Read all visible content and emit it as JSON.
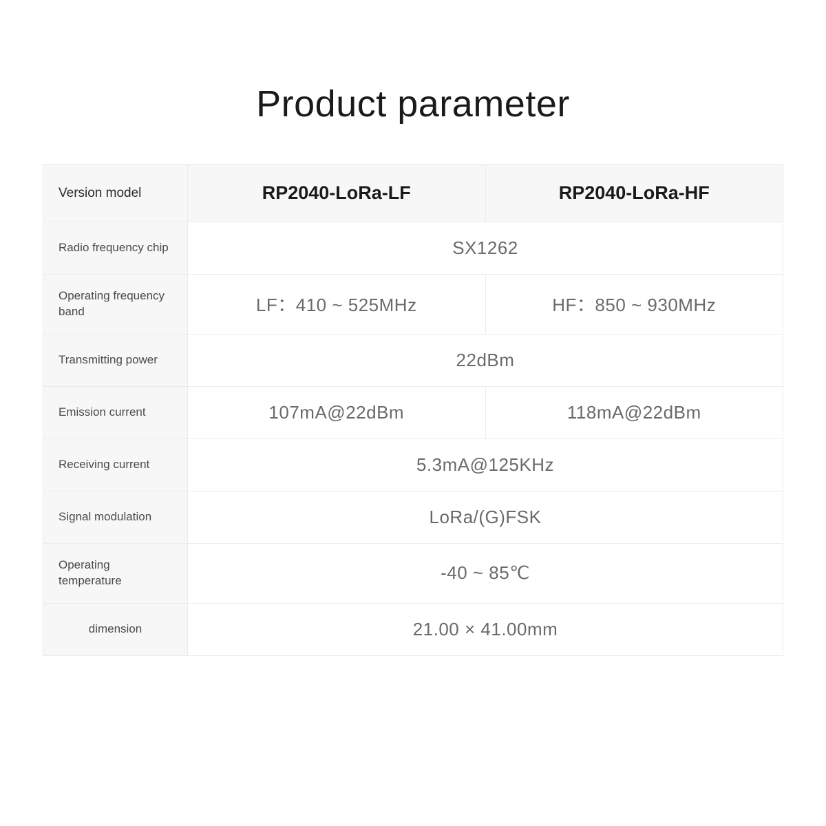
{
  "title": "Product parameter",
  "table": {
    "type": "table",
    "background_color": "#ffffff",
    "header_bg": "#f7f7f7",
    "border_color": "#ececec",
    "label_color": "#4a4a4a",
    "value_color": "#6a6a6a",
    "header_value_color": "#1a1a1a",
    "label_fontsize": 17,
    "value_fontsize": 26,
    "header_value_fontsize": 27,
    "header": {
      "label": "Version model",
      "col_lf": "RP2040-LoRa-LF",
      "col_hf": "RP2040-LoRa-HF"
    },
    "rows": [
      {
        "label": "Radio frequency chip",
        "span": true,
        "value": "SX1262"
      },
      {
        "label": "Operating frequency band",
        "span": false,
        "lf": "LF：410 ~ 525MHz",
        "hf": "HF：850 ~ 930MHz"
      },
      {
        "label": "Transmitting power",
        "span": true,
        "value": "22dBm"
      },
      {
        "label": "Emission current",
        "span": false,
        "lf": "107mA@22dBm",
        "hf": "118mA@22dBm"
      },
      {
        "label": "Receiving current",
        "span": true,
        "value": "5.3mA@125KHz"
      },
      {
        "label": "Signal modulation",
        "span": true,
        "value": "LoRa/(G)FSK"
      },
      {
        "label": "Operating temperature",
        "span": true,
        "value": "-40 ~ 85℃"
      },
      {
        "label": "dimension",
        "span": true,
        "value": "21.00 × 41.00mm",
        "label_center": true
      }
    ]
  }
}
